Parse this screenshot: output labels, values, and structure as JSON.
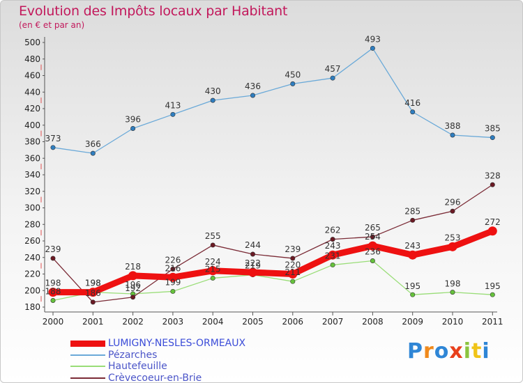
{
  "chart_data": {
    "type": "line",
    "title": "Evolution des Impôts locaux par Habitant",
    "subtitle": "(en € et par an)",
    "categories": [
      "2000",
      "2001",
      "2002",
      "2003",
      "2004",
      "2005",
      "2006",
      "2007",
      "2008",
      "2009",
      "2010",
      "2011"
    ],
    "ylim": [
      180,
      500
    ],
    "yticks": [
      180,
      200,
      220,
      240,
      260,
      280,
      300,
      320,
      340,
      360,
      380,
      400,
      420,
      440,
      460,
      480,
      500
    ],
    "grid": false,
    "legend_position": "bottom-left",
    "series": [
      {
        "name": "LUMIGNY-NESLES-ORMEAUX",
        "color": "#ee1111",
        "marker": "#ee1111",
        "width": 9,
        "values": [
          198,
          198,
          218,
          216,
          224,
          222,
          220,
          243,
          254,
          243,
          253,
          272
        ]
      },
      {
        "name": "Pézarches",
        "color": "#6aa9d8",
        "marker": "#2f7ec0",
        "width": 1.3,
        "values": [
          373,
          366,
          396,
          413,
          430,
          436,
          450,
          457,
          493,
          416,
          388,
          385
        ]
      },
      {
        "name": "Hautefeuille",
        "color": "#99dd77",
        "marker": "#66c23c",
        "width": 1.3,
        "values": [
          188,
          198,
          196,
          199,
          215,
          219,
          211,
          231,
          236,
          195,
          198,
          195
        ]
      },
      {
        "name": "Crèvecoeur-en-Brie",
        "color": "#7a2a35",
        "marker": "#6b1a24",
        "width": 1.3,
        "values": [
          239,
          186,
          192,
          226,
          255,
          244,
          239,
          262,
          265,
          285,
          296,
          328
        ]
      }
    ]
  },
  "watermark": "Proxiti"
}
